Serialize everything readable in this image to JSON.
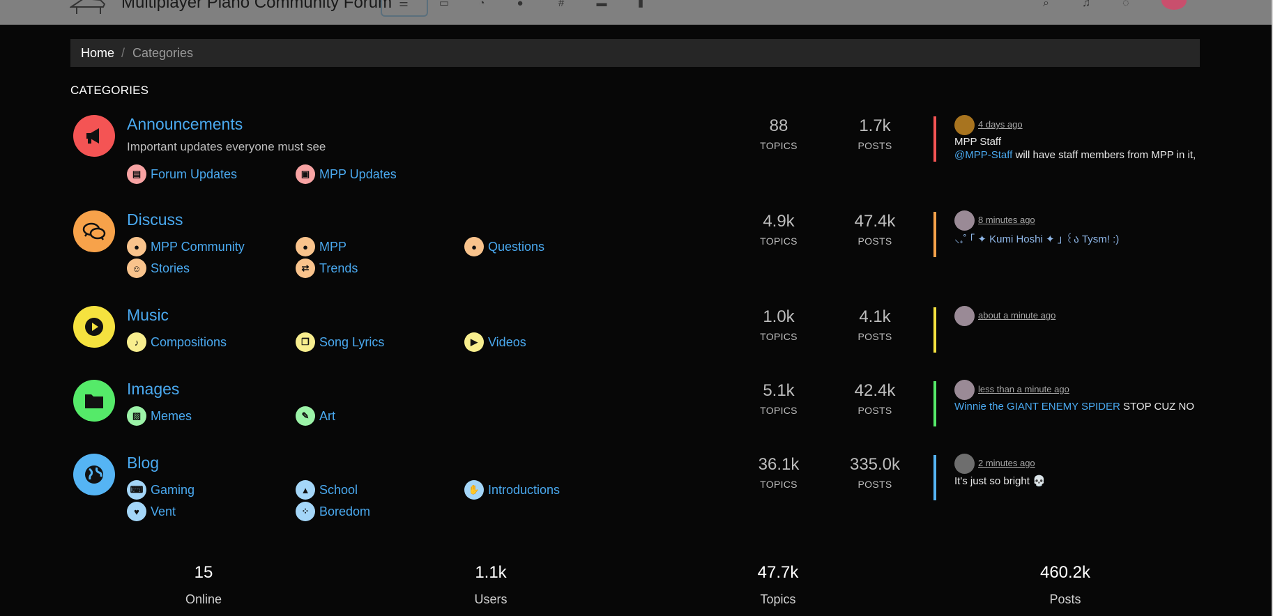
{
  "header": {
    "title": "Multiplayer Piano Community Forum"
  },
  "breadcrumb": {
    "home": "Home",
    "separator": "/",
    "current": "Categories"
  },
  "section_title": "CATEGORIES",
  "categories": [
    {
      "title": "Announcements",
      "description": "Important updates everyone must see",
      "color": "#f45454",
      "icon": "megaphone-icon",
      "subs": [
        {
          "label": "Forum Updates",
          "icon": "newspaper-icon"
        },
        {
          "label": "MPP Updates",
          "icon": "newspaper-icon"
        }
      ],
      "topics": "88",
      "posts": "1.7k",
      "teaser": {
        "time": "4 days ago",
        "line1": "MPP Staff",
        "mention": "@MPP-Staff",
        "text": " will have staff members from MPP in it,"
      }
    },
    {
      "title": "Discuss",
      "description": "",
      "color": "#f7a24a",
      "icon": "comments-icon",
      "subs": [
        {
          "label": "MPP Community",
          "icon": "comments-icon"
        },
        {
          "label": "MPP",
          "icon": "comments-icon"
        },
        {
          "label": "Questions",
          "icon": "comments-icon"
        },
        {
          "label": "Stories",
          "icon": "smile-icon"
        },
        {
          "label": "Trends",
          "icon": "arrows-icon"
        }
      ],
      "topics": "4.9k",
      "posts": "47.4k",
      "teaser": {
        "time": "8 minutes ago",
        "line1": "⸜₊˚ ｢ ✦ Kumi Hoshi ✦ ｣ ꒰ა Tysm! :)"
      }
    },
    {
      "title": "Music",
      "description": "",
      "color": "#f5e23f",
      "icon": "play-icon",
      "subs": [
        {
          "label": "Compositions",
          "icon": "file-audio-icon"
        },
        {
          "label": "Song Lyrics",
          "icon": "copy-icon"
        },
        {
          "label": "Videos",
          "icon": "youtube-icon"
        }
      ],
      "topics": "1.0k",
      "posts": "4.1k",
      "teaser": {
        "time": "about a minute ago"
      }
    },
    {
      "title": "Images",
      "description": "",
      "color": "#55ea69",
      "icon": "folder-icon",
      "subs": [
        {
          "label": "Memes",
          "icon": "image-icon"
        },
        {
          "label": "Art",
          "icon": "pen-icon"
        }
      ],
      "topics": "5.1k",
      "posts": "42.4k",
      "teaser": {
        "time": "less than a minute ago",
        "mention": "Winnie the GIANT ENEMY SPIDER",
        "text": " STOP CUZ NO"
      }
    },
    {
      "title": "Blog",
      "description": "",
      "color": "#55b4f4",
      "icon": "globe-icon",
      "subs": [
        {
          "label": "Gaming",
          "icon": "keyboard-icon"
        },
        {
          "label": "School",
          "icon": "graduation-cap-icon"
        },
        {
          "label": "Introductions",
          "icon": "hand-icon"
        },
        {
          "label": "Vent",
          "icon": "heart-icon"
        },
        {
          "label": "Boredom",
          "icon": "spinner-icon"
        }
      ],
      "topics": "36.1k",
      "posts": "335.0k",
      "teaser": {
        "time": "2 minutes ago",
        "line1": "It's just so bright 💀"
      }
    }
  ],
  "labels": {
    "topics": "TOPICS",
    "posts": "POSTS"
  },
  "footer": [
    {
      "value": "15",
      "label": "Online"
    },
    {
      "value": "1.1k",
      "label": "Users"
    },
    {
      "value": "47.7k",
      "label": "Topics"
    },
    {
      "value": "460.2k",
      "label": "Posts"
    }
  ]
}
